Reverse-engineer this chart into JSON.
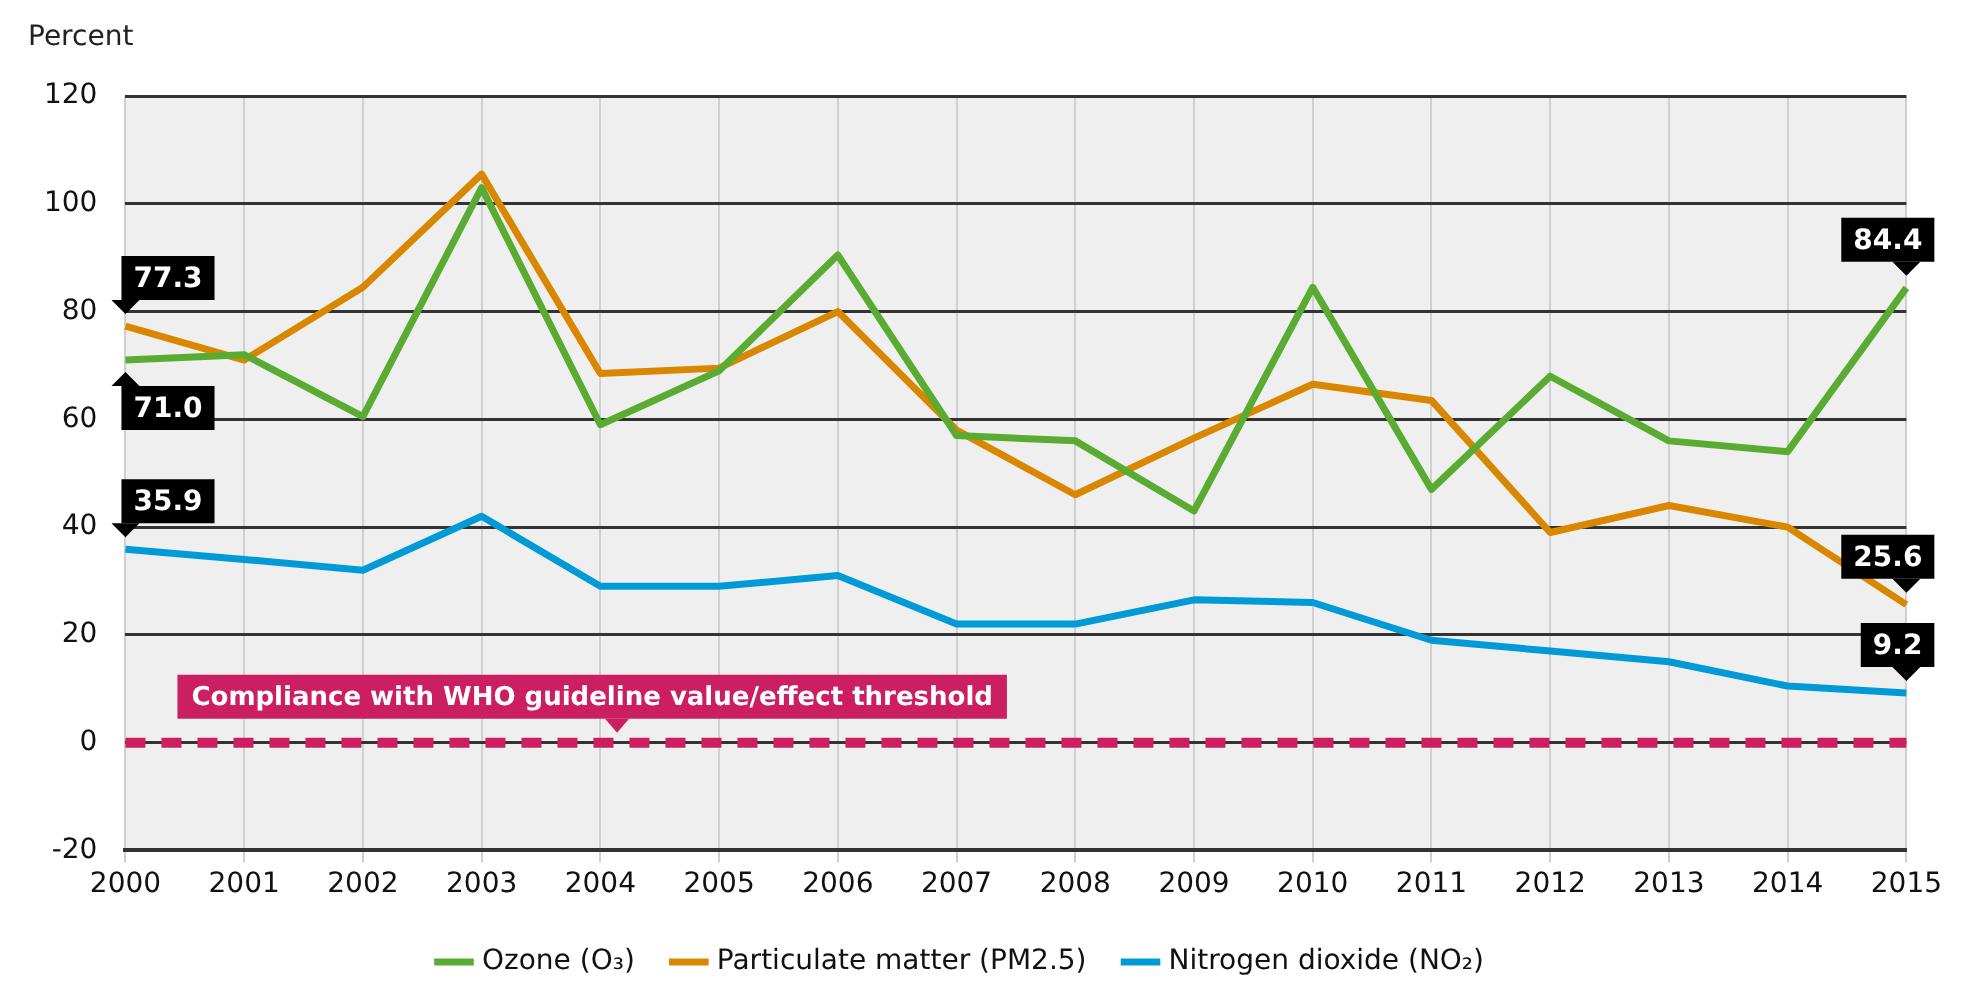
{
  "chart_data": {
    "type": "line",
    "ylabel": "Percent",
    "categories": [
      "2000",
      "2001",
      "2002",
      "2003",
      "2004",
      "2005",
      "2006",
      "2007",
      "2008",
      "2009",
      "2010",
      "2011",
      "2012",
      "2013",
      "2014",
      "2015"
    ],
    "series": [
      {
        "name": "Ozone (O₃)",
        "color": "#5aab32",
        "values": [
          71.0,
          72,
          60.5,
          103,
          59,
          69,
          90.5,
          57,
          56,
          43,
          84.5,
          47,
          68,
          56,
          54,
          84.4
        ],
        "value_labels": [
          "71.0",
          null,
          null,
          null,
          null,
          null,
          null,
          null,
          null,
          null,
          null,
          null,
          null,
          null,
          null,
          "84.4"
        ]
      },
      {
        "name": "Particulate matter (PM2.5)",
        "color": "#d98700",
        "values": [
          77.3,
          71,
          84.5,
          105.5,
          68.5,
          69.5,
          80,
          58,
          46,
          56.5,
          66.5,
          63.5,
          39,
          44,
          40,
          25.6
        ],
        "value_labels": [
          "77.3",
          null,
          null,
          null,
          null,
          null,
          null,
          null,
          null,
          null,
          null,
          null,
          null,
          null,
          null,
          "25.6"
        ]
      },
      {
        "name": "Nitrogen dioxide (NO₂)",
        "color": "#009ad6",
        "values": [
          35.9,
          34,
          32,
          42,
          29,
          29,
          31,
          22,
          22,
          26.5,
          26,
          19,
          17,
          15,
          10.5,
          9.2
        ],
        "value_labels": [
          "35.9",
          null,
          null,
          null,
          null,
          null,
          null,
          null,
          null,
          null,
          null,
          null,
          null,
          null,
          null,
          "9.2"
        ]
      }
    ],
    "ylim": [
      -20,
      120
    ],
    "yticks": [
      -20,
      0,
      20,
      40,
      60,
      80,
      100,
      120
    ],
    "grid": true,
    "legend": "bottom",
    "marker": "none",
    "line_style": "solid",
    "ref_lines": [
      {
        "axis": "y",
        "value": 0,
        "label": "Compliance with WHO guideline value/effect threshold",
        "color": "#cc1f62",
        "line_style": "dashed"
      }
    ]
  }
}
